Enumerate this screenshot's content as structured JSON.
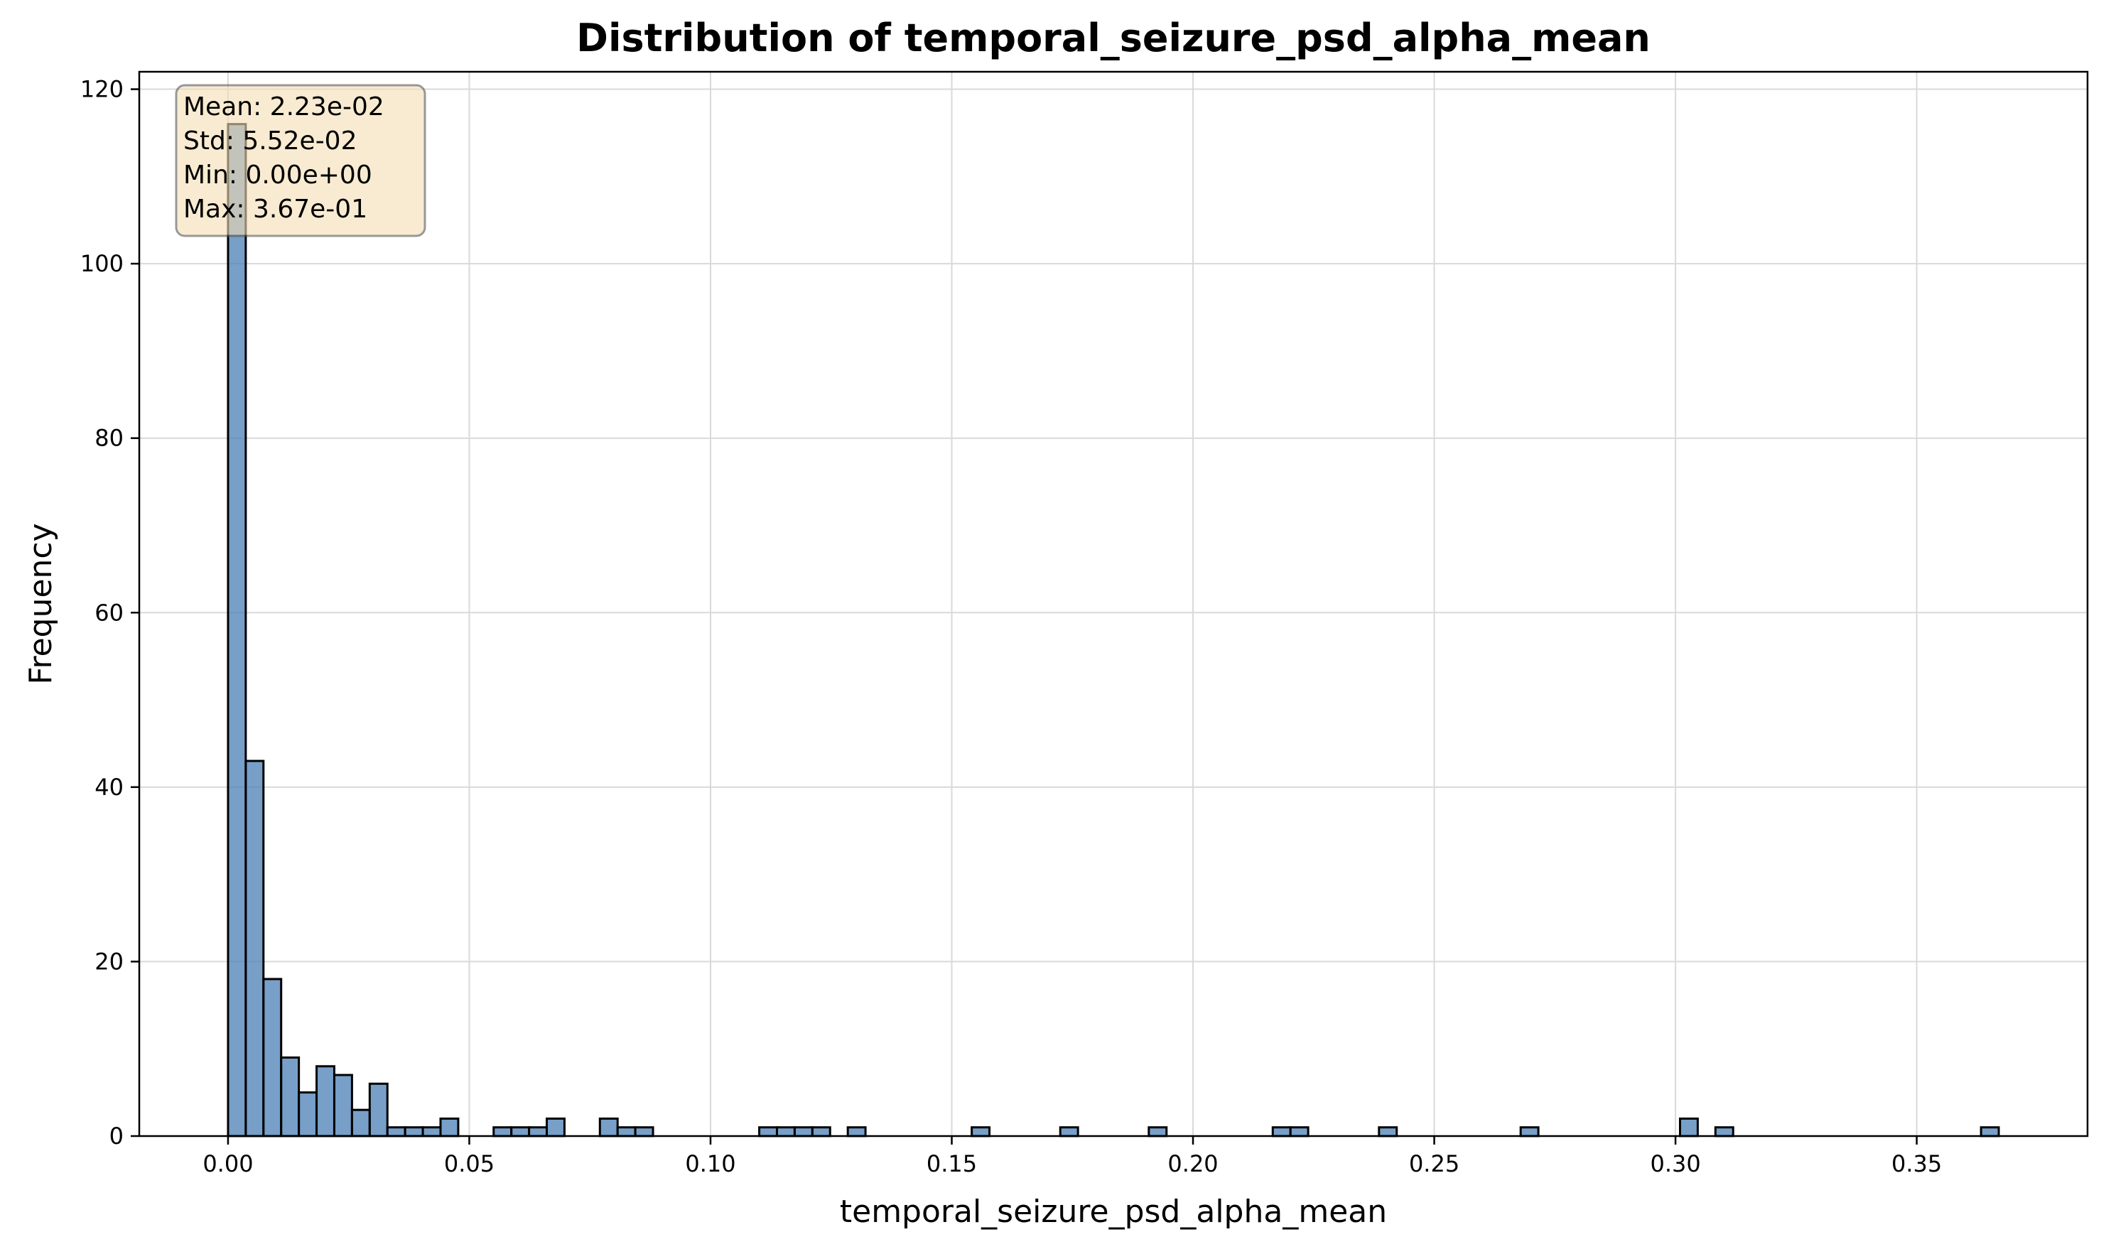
{
  "chart_data": {
    "type": "bar",
    "title": "Distribution of temporal_seizure_psd_alpha_mean",
    "xlabel": "temporal_seizure_psd_alpha_mean",
    "ylabel": "Frequency",
    "xlim": [
      -0.0184,
      0.3854
    ],
    "ylim": [
      0,
      122
    ],
    "xticks": [
      0.0,
      0.05,
      0.1,
      0.15,
      0.2,
      0.25,
      0.3,
      0.35
    ],
    "xtick_labels": [
      "0.00",
      "0.05",
      "0.10",
      "0.15",
      "0.20",
      "0.25",
      "0.30",
      "0.35"
    ],
    "yticks": [
      0,
      20,
      40,
      60,
      80,
      100,
      120
    ],
    "ytick_labels": [
      "0",
      "20",
      "40",
      "60",
      "80",
      "100",
      "120"
    ],
    "grid": true,
    "bar_color": "#4a7fb5",
    "edge_color": "#000000",
    "bin_start": 0.0,
    "bin_width": 0.00367,
    "bins": [
      {
        "bin": 0,
        "count": 116
      },
      {
        "bin": 1,
        "count": 43
      },
      {
        "bin": 2,
        "count": 18
      },
      {
        "bin": 3,
        "count": 9
      },
      {
        "bin": 4,
        "count": 5
      },
      {
        "bin": 5,
        "count": 8
      },
      {
        "bin": 6,
        "count": 7
      },
      {
        "bin": 7,
        "count": 3
      },
      {
        "bin": 8,
        "count": 6
      },
      {
        "bin": 9,
        "count": 1
      },
      {
        "bin": 10,
        "count": 1
      },
      {
        "bin": 11,
        "count": 1
      },
      {
        "bin": 12,
        "count": 2
      },
      {
        "bin": 15,
        "count": 1
      },
      {
        "bin": 16,
        "count": 1
      },
      {
        "bin": 17,
        "count": 1
      },
      {
        "bin": 18,
        "count": 2
      },
      {
        "bin": 21,
        "count": 2
      },
      {
        "bin": 22,
        "count": 1
      },
      {
        "bin": 23,
        "count": 1
      },
      {
        "bin": 30,
        "count": 1
      },
      {
        "bin": 31,
        "count": 1
      },
      {
        "bin": 32,
        "count": 1
      },
      {
        "bin": 33,
        "count": 1
      },
      {
        "bin": 35,
        "count": 1
      },
      {
        "bin": 42,
        "count": 1
      },
      {
        "bin": 47,
        "count": 1
      },
      {
        "bin": 52,
        "count": 1
      },
      {
        "bin": 59,
        "count": 1
      },
      {
        "bin": 60,
        "count": 1
      },
      {
        "bin": 65,
        "count": 1
      },
      {
        "bin": 73,
        "count": 1
      },
      {
        "bin": 82,
        "count": 2
      },
      {
        "bin": 84,
        "count": 1
      },
      {
        "bin": 99,
        "count": 1
      }
    ],
    "stats_box": {
      "lines": [
        "Mean: 2.23e-02",
        "Std: 5.52e-02",
        "Min: 0.00e+00",
        "Max: 3.67e-01"
      ],
      "fill": "#f5deb3",
      "edge": "#555555"
    }
  }
}
